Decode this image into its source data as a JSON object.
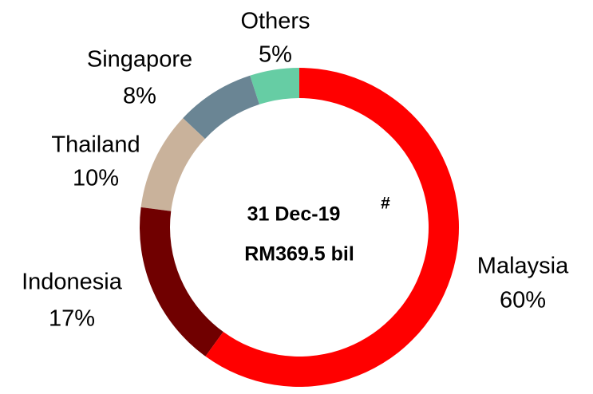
{
  "chart_data": {
    "type": "donut",
    "categories": [
      "Malaysia",
      "Indonesia",
      "Thailand",
      "Singapore",
      "Others"
    ],
    "values": [
      60,
      17,
      10,
      8,
      5
    ],
    "value_labels": [
      "60%",
      "17%",
      "10%",
      "8%",
      "5%"
    ],
    "colors": [
      "#ff0000",
      "#700000",
      "#c9b29b",
      "#6a8594",
      "#66cda4"
    ],
    "center_label": [
      "31 Dec-19",
      "RM369.5 bil"
    ],
    "center_note": "#"
  }
}
